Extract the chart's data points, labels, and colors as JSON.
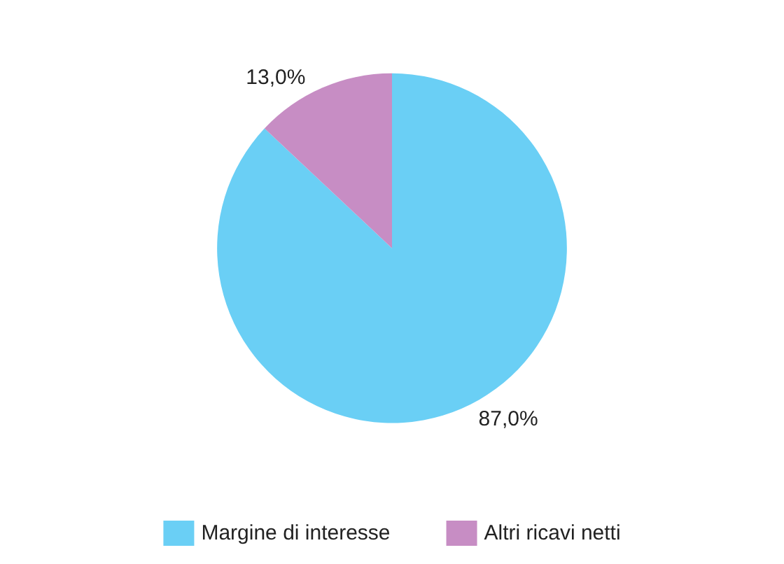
{
  "chart_data": {
    "type": "pie",
    "categories": [
      "Margine di interesse",
      "Altri ricavi netti"
    ],
    "values": [
      87.0,
      13.0
    ],
    "colors": [
      "#6acff5",
      "#c78dc4"
    ],
    "value_labels": [
      "87,0%",
      "13,0%"
    ],
    "legend": "bottom"
  }
}
